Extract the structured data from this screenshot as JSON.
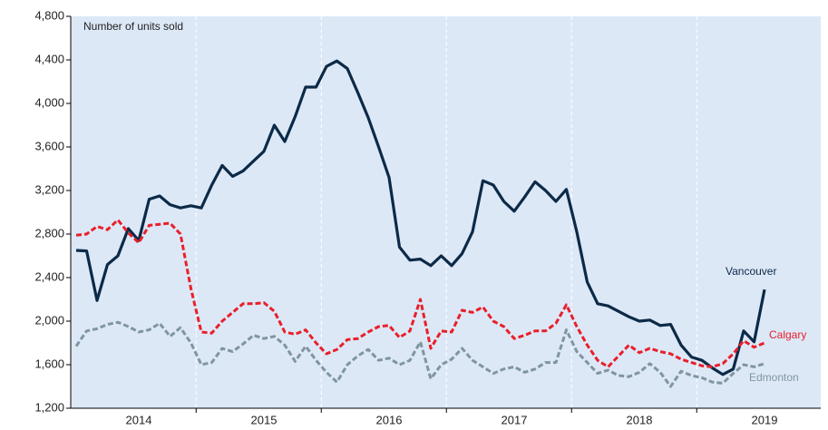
{
  "chart_data": {
    "type": "line",
    "y_label": "Number of units sold",
    "categories": [
      null,
      null,
      null,
      null,
      null,
      null,
      "2014",
      null,
      null,
      null,
      null,
      null,
      null,
      null,
      null,
      null,
      null,
      null,
      "2015",
      null,
      null,
      null,
      null,
      null,
      null,
      null,
      null,
      null,
      null,
      null,
      "2016",
      null,
      null,
      null,
      null,
      null,
      null,
      null,
      null,
      null,
      null,
      null,
      "2017",
      null,
      null,
      null,
      null,
      null,
      null,
      null,
      null,
      null,
      null,
      null,
      "2018",
      null,
      null,
      null,
      null,
      null,
      null,
      null,
      null,
      null,
      null,
      null,
      "2019"
    ],
    "series": [
      {
        "name": "Vancouver",
        "color": "#0b2a47",
        "dashed": false,
        "values": [
          2650,
          2645,
          2190,
          2520,
          2600,
          2850,
          2740,
          3120,
          3150,
          3070,
          3040,
          3060,
          3040,
          3250,
          3430,
          3330,
          3380,
          3470,
          3560,
          3800,
          3650,
          3880,
          4150,
          4150,
          4340,
          4390,
          4320,
          4100,
          3870,
          3600,
          3320,
          2680,
          2560,
          2570,
          2510,
          2600,
          2510,
          2620,
          2820,
          3290,
          3250,
          3100,
          3010,
          3140,
          3280,
          3200,
          3100,
          3210,
          2820,
          2360,
          2160,
          2140,
          2090,
          2040,
          2000,
          2010,
          1960,
          1970,
          1780,
          1670,
          1640,
          1570,
          1510,
          1560,
          1910,
          1810,
          2290
        ]
      },
      {
        "name": "Calgary",
        "color": "#e8202a",
        "dashed": true,
        "values": [
          2790,
          2800,
          2870,
          2840,
          2930,
          2810,
          2720,
          2880,
          2890,
          2900,
          2800,
          2300,
          1900,
          1890,
          2000,
          2080,
          2160,
          2160,
          2170,
          2090,
          1900,
          1880,
          1920,
          1800,
          1700,
          1740,
          1830,
          1840,
          1900,
          1950,
          1960,
          1850,
          1910,
          2200,
          1750,
          1910,
          1900,
          2100,
          2080,
          2130,
          2000,
          1950,
          1840,
          1870,
          1910,
          1910,
          1980,
          2150,
          1950,
          1780,
          1640,
          1580,
          1680,
          1780,
          1710,
          1750,
          1720,
          1700,
          1650,
          1620,
          1590,
          1580,
          1610,
          1700,
          1820,
          1760,
          1800
        ]
      },
      {
        "name": "Edmonton",
        "color": "#7f96a0",
        "dashed": true,
        "values": [
          1770,
          1910,
          1930,
          1970,
          1990,
          1950,
          1900,
          1920,
          1980,
          1860,
          1940,
          1800,
          1600,
          1620,
          1750,
          1720,
          1790,
          1870,
          1840,
          1860,
          1780,
          1630,
          1770,
          1640,
          1530,
          1440,
          1600,
          1680,
          1740,
          1640,
          1660,
          1600,
          1640,
          1810,
          1470,
          1600,
          1650,
          1750,
          1640,
          1580,
          1520,
          1560,
          1580,
          1530,
          1560,
          1620,
          1620,
          1920,
          1720,
          1620,
          1520,
          1550,
          1500,
          1490,
          1530,
          1610,
          1530,
          1400,
          1540,
          1500,
          1480,
          1440,
          1430,
          1520,
          1600,
          1580,
          1610
        ]
      }
    ],
    "ylim": [
      1200,
      4800
    ],
    "yticks": [
      {
        "value": 1200,
        "label": "1,200"
      },
      {
        "value": 1600,
        "label": "1,600"
      },
      {
        "value": 2000,
        "label": "2,000"
      },
      {
        "value": 2400,
        "label": "2,400"
      },
      {
        "value": 2800,
        "label": "2,800"
      },
      {
        "value": 3200,
        "label": "3,200"
      },
      {
        "value": 3600,
        "label": "3,600"
      },
      {
        "value": 4000,
        "label": "4,000"
      },
      {
        "value": 4400,
        "label": "4,400"
      },
      {
        "value": 4800,
        "label": "4,800"
      }
    ],
    "grid": false
  }
}
